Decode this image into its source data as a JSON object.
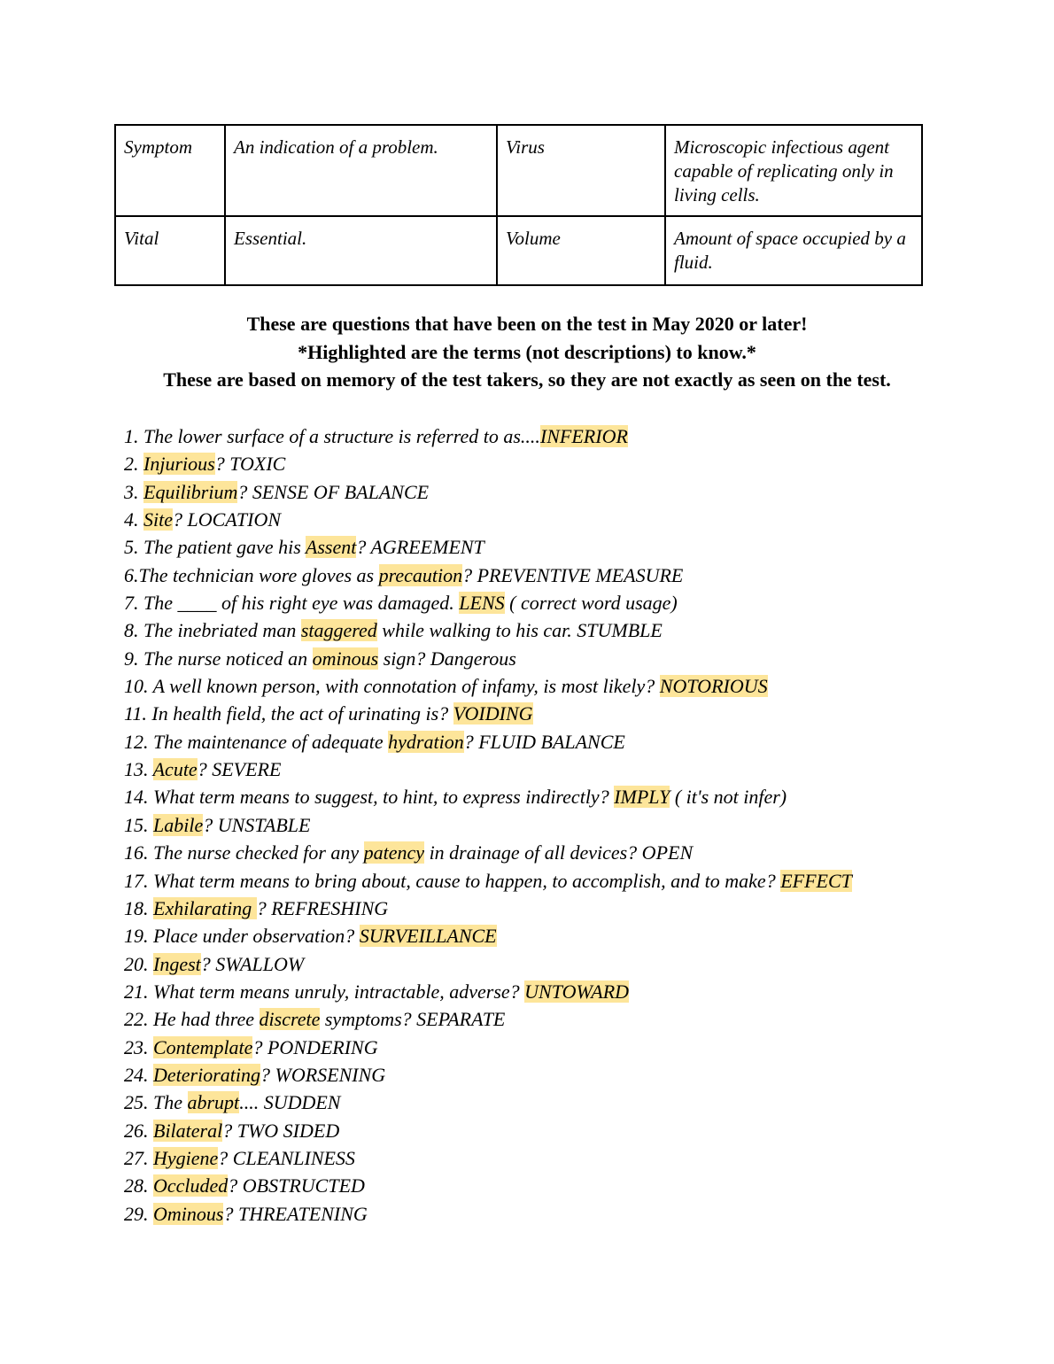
{
  "colors": {
    "highlight": "#fde59a"
  },
  "table": {
    "rows": [
      [
        "Symptom",
        "An indication of a problem.",
        "Virus",
        "Microscopic infectious agent capable of replicating only in living cells."
      ],
      [
        "Vital",
        "Essential.",
        "Volume",
        "Amount of space occupied by a fluid."
      ]
    ]
  },
  "headings": [
    "These are questions that have been on the test in May 2020 or later!",
    "*Highlighted are the terms (not descriptions) to know.*",
    "These are based on memory of the test takers, so they are not exactly as seen on the test."
  ],
  "questions": [
    {
      "pre": "1. The lower surface of a structure is referred to as....",
      "term": "INFERIOR",
      "post": ""
    },
    {
      "pre": "2. ",
      "term": "Injurious",
      "post": "? TOXIC"
    },
    {
      "pre": "3. ",
      "term": "Equilibrium",
      "post": "? SENSE OF BALANCE"
    },
    {
      "pre": "4. ",
      "term": "Site",
      "post": "? LOCATION"
    },
    {
      "pre": "5. The patient gave his ",
      "term": "Assent",
      "post": "? AGREEMENT"
    },
    {
      "pre": "6.The technician wore gloves as ",
      "term": "precaution",
      "post": "? PREVENTIVE MEASURE"
    },
    {
      "pre": "7. The ____ of his right eye was damaged. ",
      "term": "LENS",
      "post": " ( correct word usage)"
    },
    {
      "pre": "8. The inebriated man ",
      "term": "staggered",
      "post": " while walking to his car. STUMBLE"
    },
    {
      "pre": "9. The nurse noticed an ",
      "term": "ominous",
      "post": " sign? Dangerous"
    },
    {
      "pre": "10. A well known person, with connotation of infamy, is most likely? ",
      "term": "NOTORIOUS",
      "post": ""
    },
    {
      "pre": "11. In health field, the act of urinating is? ",
      "term": "VOIDING",
      "post": ""
    },
    {
      "pre": "12. The maintenance of adequate ",
      "term": "hydration",
      "post": "? FLUID BALANCE"
    },
    {
      "pre": "13. ",
      "term": "Acute",
      "post": "? SEVERE"
    },
    {
      "pre": "14. What term means to suggest, to hint, to express indirectly? ",
      "term": "IMPLY",
      "post": " ( it's not infer)"
    },
    {
      "pre": "15. ",
      "term": "Labile",
      "post": "? UNSTABLE"
    },
    {
      "pre": "16. The nurse checked for any ",
      "term": "patency",
      "post": " in drainage of all devices? OPEN"
    },
    {
      "pre": "17. What term means to bring about, cause to happen, to accomplish, and to make? ",
      "term": "EFFECT",
      "post": ""
    },
    {
      "pre": "18. ",
      "term": "Exhilarating ",
      "post": "? REFRESHING"
    },
    {
      "pre": "19. Place under observation? ",
      "term": "SURVEILLANCE",
      "post": ""
    },
    {
      "pre": "20. ",
      "term": "Ingest",
      "post": "? SWALLOW"
    },
    {
      "pre": "21. What term means unruly, intractable, adverse? ",
      "term": "UNTOWARD",
      "post": ""
    },
    {
      "pre": "22. He had three ",
      "term": "discrete",
      "post": " symptoms? SEPARATE"
    },
    {
      "pre": "23. ",
      "term": "Contemplate",
      "post": "? PONDERING"
    },
    {
      "pre": "24. ",
      "term": "Deteriorating",
      "post": "? WORSENING"
    },
    {
      "pre": "25. The ",
      "term": "abrupt",
      "post": ".... SUDDEN"
    },
    {
      "pre": "26. ",
      "term": "Bilateral",
      "post": "? TWO SIDED"
    },
    {
      "pre": "27. ",
      "term": "Hygiene",
      "post": "? CLEANLINESS"
    },
    {
      "pre": "28. ",
      "term": "Occluded",
      "post": "? OBSTRUCTED"
    },
    {
      "pre": "29. ",
      "term": "Ominous",
      "post": "? THREATENING"
    }
  ]
}
